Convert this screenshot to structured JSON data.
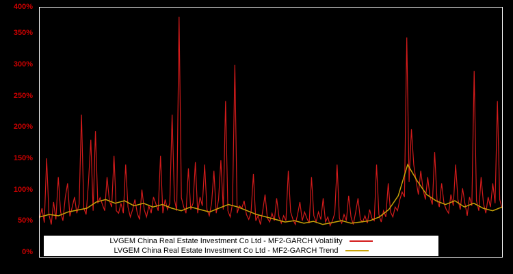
{
  "chart_data": {
    "type": "line",
    "title": "",
    "xlabel": "",
    "ylabel": "",
    "x_axis_labels_visible": false,
    "ylim": [
      0,
      400
    ],
    "y_tick_step": 50,
    "y_ticks": [
      "0%",
      "50%",
      "100%",
      "150%",
      "200%",
      "250%",
      "300%",
      "350%",
      "400%"
    ],
    "y_tick_color": "#cc0000",
    "grid": false,
    "plot_background": "#000000",
    "plot_border_color": "#ffffff",
    "legend": {
      "position": "bottom-center",
      "background": "#ffffff",
      "text_color": "#000000"
    },
    "series": [
      {
        "key": "volatility-line",
        "name": "LVGEM China Real Estate Investment Co Ltd - MF2-GARCH Volatility",
        "color": "#d41b1b",
        "unit": "%",
        "values": [
          62,
          78,
          55,
          158,
          68,
          52,
          88,
          60,
          128,
          72,
          58,
          95,
          118,
          65,
          80,
          96,
          70,
          85,
          228,
          78,
          68,
          118,
          188,
          74,
          202,
          86,
          95,
          84,
          74,
          128,
          90,
          80,
          162,
          74,
          70,
          86,
          70,
          148,
          80,
          64,
          76,
          92,
          70,
          60,
          108,
          76,
          64,
          82,
          70,
          96,
          85,
          74,
          162,
          70,
          92,
          76,
          86,
          228,
          92,
          74,
          385,
          95,
          80,
          70,
          142,
          76,
          86,
          152,
          70,
          96,
          82,
          148,
          76,
          66,
          86,
          138,
          70,
          92,
          155,
          76,
          250,
          74,
          64,
          86,
          308,
          70,
          82,
          78,
          90,
          68,
          60,
          72,
          133,
          58,
          66,
          52,
          74,
          100,
          62,
          56,
          70,
          58,
          94,
          64,
          54,
          66,
          58,
          138,
          72,
          60,
          52,
          68,
          88,
          58,
          72,
          62,
          54,
          128,
          66,
          56,
          72,
          60,
          94,
          56,
          64,
          50,
          58,
          70,
          148,
          62,
          54,
          68,
          58,
          98,
          64,
          52,
          72,
          94,
          60,
          56,
          66,
          54,
          76,
          62,
          58,
          148,
          68,
          56,
          74,
          64,
          118,
          72,
          64,
          80,
          74,
          92,
          104,
          96,
          352,
          120,
          205,
          148,
          122,
          100,
          138,
          108,
          92,
          128,
          96,
          84,
          168,
          92,
          80,
          118,
          86,
          76,
          70,
          100,
          82,
          148,
          92,
          76,
          110,
          86,
          66,
          96,
          82,
          298,
          90,
          74,
          128,
          86,
          70,
          96,
          80,
          118,
          86,
          250,
          92,
          78
        ]
      },
      {
        "key": "trend-line",
        "name": "LVGEM China Real Estate Investment Co Ltd - MF2-GARCH Trend",
        "color": "#c9a408",
        "unit": "%",
        "values": [
          64,
          68,
          66,
          72,
          75,
          78,
          88,
          92,
          86,
          90,
          82,
          86,
          80,
          84,
          78,
          74,
          80,
          76,
          72,
          78,
          84,
          80,
          74,
          68,
          64,
          60,
          56,
          58,
          54,
          57,
          52,
          55,
          58,
          54,
          56,
          58,
          64,
          76,
          98,
          148,
          122,
          100,
          90,
          84,
          90,
          80,
          86,
          78,
          74,
          80
        ]
      }
    ]
  }
}
